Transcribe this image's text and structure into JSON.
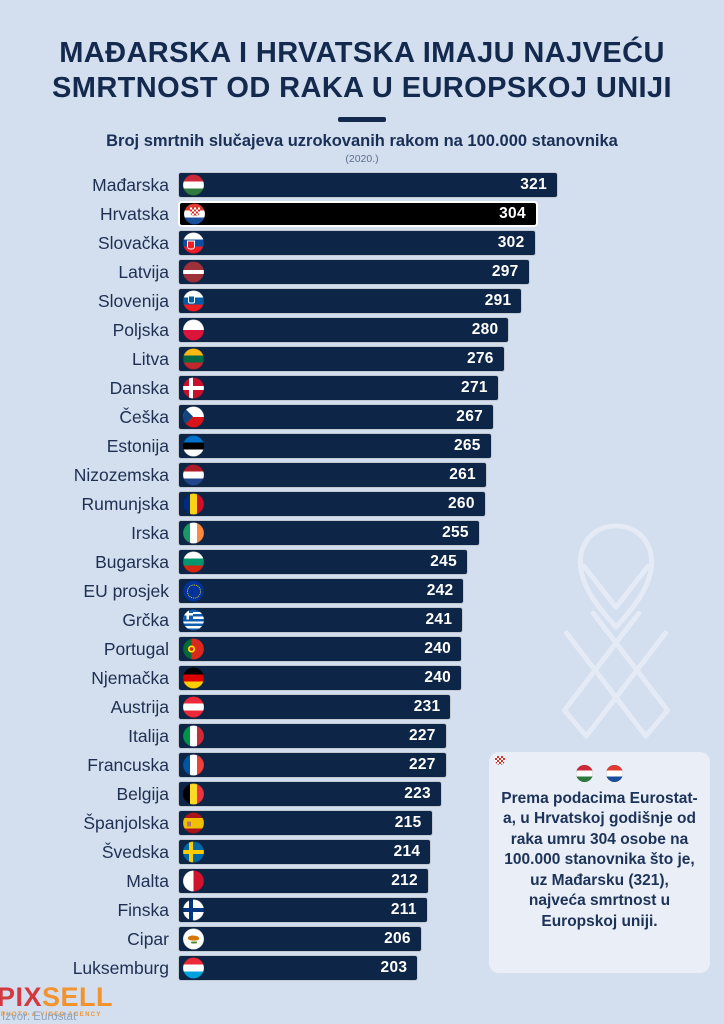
{
  "page": {
    "background": "#d3dfee"
  },
  "chart_data": {
    "type": "bar",
    "orientation": "horizontal",
    "title": "MAĐARSKA I HRVATSKA IMAJU NAJVEĆU SMRTNOST OD RAKA U EUROPSKOJ UNIJI",
    "subtitle": "Broj smrtnih slučajeva uzrokovanih rakom na 100.000 stanovnika",
    "year_label": "(2020.)",
    "xlim": [
      0,
      321
    ],
    "grid": false,
    "legend": false,
    "categories": [
      "Mađarska",
      "Hrvatska",
      "Slovačka",
      "Latvija",
      "Slovenija",
      "Poljska",
      "Litva",
      "Danska",
      "Češka",
      "Estonija",
      "Nizozemska",
      "Rumunjska",
      "Irska",
      "Bugarska",
      "EU prosjek",
      "Grčka",
      "Portugal",
      "Njemačka",
      "Austrija",
      "Italija",
      "Francuska",
      "Belgija",
      "Španjolska",
      "Švedska",
      "Malta",
      "Finska",
      "Cipar",
      "Luksemburg"
    ],
    "values": [
      321,
      304,
      302,
      297,
      291,
      280,
      276,
      271,
      267,
      265,
      261,
      260,
      255,
      245,
      242,
      241,
      240,
      240,
      231,
      227,
      227,
      223,
      215,
      214,
      212,
      211,
      206,
      203
    ],
    "flags": [
      "hu",
      "hr",
      "sk",
      "lv",
      "si",
      "pl",
      "lt",
      "dk",
      "cz",
      "ee",
      "nl",
      "ro",
      "ie",
      "bg",
      "eu",
      "gr",
      "pt",
      "de",
      "at",
      "it",
      "fr",
      "be",
      "es",
      "se",
      "mt",
      "fi",
      "cy",
      "lu"
    ],
    "highlight_index": 1,
    "highlight_category": "Hrvatska",
    "bar_color": "#0d2546",
    "highlight_color": "#000000",
    "value_color": "#ffffff"
  },
  "note_box": {
    "flag_icons": [
      "hu",
      "hr"
    ],
    "text": "Prema podacima Eurostat-a, u Hrvatskoj godišnje od raka umru 304 osobe na 100.000 stanovnika što je, uz Mađarsku (321), najveća smrtnost u Europskoj uniji."
  },
  "watermark": {
    "icon": "awareness-ribbon-icon"
  },
  "footer": {
    "logo_part1": "PIX",
    "logo_part2": "SELL",
    "logo_tagline": "PHOTO & VIDEO AGENCY",
    "source": "Izvor: Eurostat",
    "logo_color1": "#d23a40",
    "logo_color2": "#f2932e"
  }
}
